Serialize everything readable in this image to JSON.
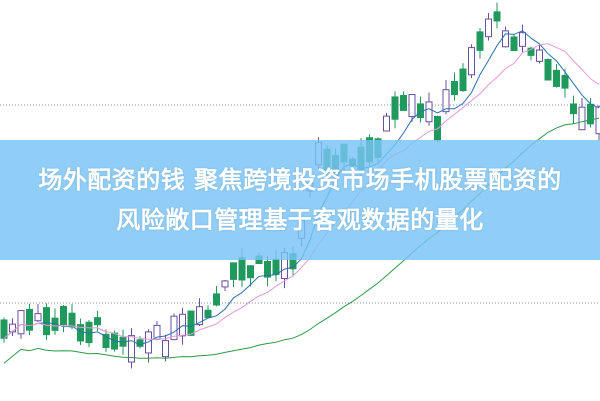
{
  "headline": {
    "line1": "场外配资的钱 聚焦跨境投资市场手机股票配资的",
    "line2": "风险敞口管理基于客观数据的量化"
  },
  "colors": {
    "up_candle": "#6a4fa0",
    "down_candle": "#1f9a5c",
    "banner": "#8fcdf7",
    "ma_short": "#2a6fb0",
    "ma_mid": "#e59ad6",
    "ma_long": "#2e9a48"
  }
}
